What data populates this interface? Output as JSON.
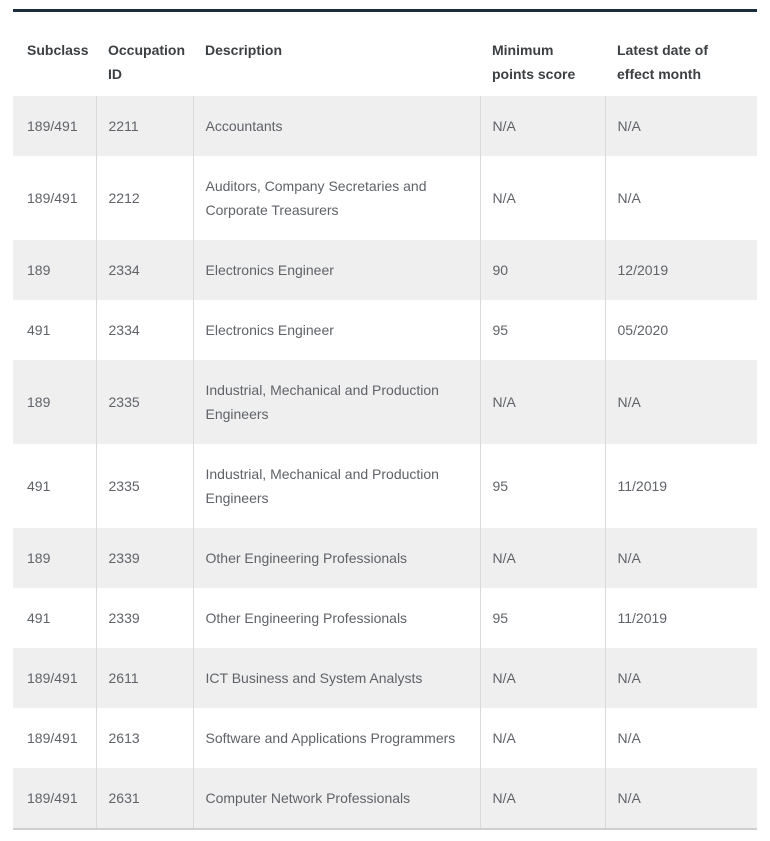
{
  "colors": {
    "table_top_border": "#1b2c3f",
    "table_bottom_border": "#cfcfcf",
    "row_stripe_background": "#efefef",
    "column_divider": "#d9d9d9",
    "header_text": "#3c4043",
    "body_text": "#5f6368",
    "page_background": "#ffffff"
  },
  "table": {
    "columns": [
      {
        "label": "Subclass"
      },
      {
        "label": "Occupation\nID"
      },
      {
        "label": "Description"
      },
      {
        "label": "Minimum\npoints score"
      },
      {
        "label": "Latest date of\neffect month"
      }
    ],
    "rows": [
      [
        "189/491",
        "2211",
        "Accountants",
        "N/A",
        "N/A"
      ],
      [
        "189/491",
        "2212",
        "Auditors, Company Secretaries and Corporate Treasurers",
        "N/A",
        "N/A"
      ],
      [
        "189",
        "2334",
        "Electronics Engineer",
        "90",
        "12/2019"
      ],
      [
        "491",
        "2334",
        "Electronics Engineer",
        "95",
        "05/2020"
      ],
      [
        "189",
        "2335",
        "Industrial, Mechanical and Production Engineers",
        "N/A",
        "N/A"
      ],
      [
        "491",
        "2335",
        "Industrial, Mechanical and Production Engineers",
        "95",
        "11/2019"
      ],
      [
        "189",
        "2339",
        "Other Engineering Professionals",
        "N/A",
        "N/A"
      ],
      [
        "491",
        "2339",
        "Other Engineering Professionals",
        "95",
        "11/2019"
      ],
      [
        "189/491",
        "2611",
        "ICT Business and System Analysts",
        "N/A",
        "N/A"
      ],
      [
        "189/491",
        "2613",
        "Software and Applications Programmers",
        "N/A",
        "N/A"
      ],
      [
        "189/491",
        "2631",
        "Computer Network Professionals",
        "N/A",
        "N/A"
      ]
    ]
  },
  "chart_data": {
    "type": "table",
    "title": "",
    "columns": [
      "Subclass",
      "Occupation ID",
      "Description",
      "Minimum points score",
      "Latest date of effect month"
    ],
    "rows": [
      [
        "189/491",
        "2211",
        "Accountants",
        "N/A",
        "N/A"
      ],
      [
        "189/491",
        "2212",
        "Auditors, Company Secretaries and Corporate Treasurers",
        "N/A",
        "N/A"
      ],
      [
        "189",
        "2334",
        "Electronics Engineer",
        "90",
        "12/2019"
      ],
      [
        "491",
        "2334",
        "Electronics Engineer",
        "95",
        "05/2020"
      ],
      [
        "189",
        "2335",
        "Industrial, Mechanical and Production Engineers",
        "N/A",
        "N/A"
      ],
      [
        "491",
        "2335",
        "Industrial, Mechanical and Production Engineers",
        "95",
        "11/2019"
      ],
      [
        "189",
        "2339",
        "Other Engineering Professionals",
        "N/A",
        "N/A"
      ],
      [
        "491",
        "2339",
        "Other Engineering Professionals",
        "95",
        "11/2019"
      ],
      [
        "189/491",
        "2611",
        "ICT Business and System Analysts",
        "N/A",
        "N/A"
      ],
      [
        "189/491",
        "2613",
        "Software and Applications Programmers",
        "N/A",
        "N/A"
      ],
      [
        "189/491",
        "2631",
        "Computer Network Professionals",
        "N/A",
        "N/A"
      ]
    ]
  }
}
